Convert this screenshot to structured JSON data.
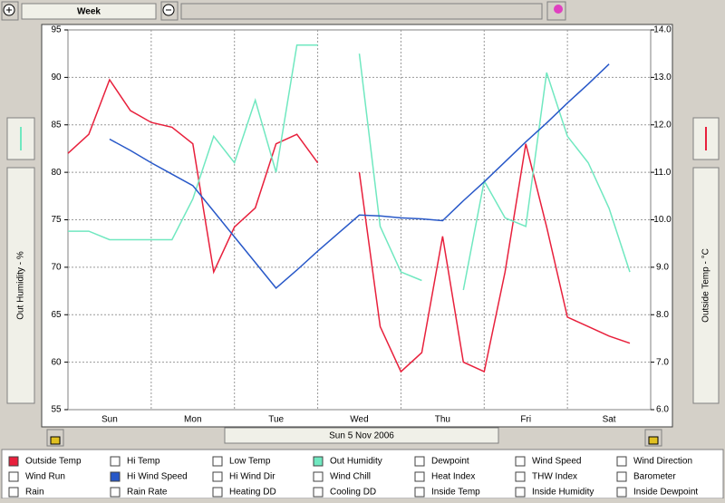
{
  "toolbar": {
    "period": "Week"
  },
  "footer": {
    "date": "Sun 5 Nov 2006"
  },
  "legend": {
    "items": [
      null,
      "Hi Temp",
      "Low Temp",
      null,
      "Dewpoint",
      "Wind Speed",
      "Wind Direction",
      "Wind Run",
      null,
      "Hi Wind Dir",
      "Wind Chill",
      "Heat Index",
      "THW Index",
      "Barometer",
      "Rain",
      "Rain Rate",
      "Heating DD",
      "Cooling DD",
      "Inside Temp",
      "Inside Humidity",
      "Inside Dewpoint"
    ]
  },
  "chart_data": {
    "type": "line",
    "y_label": "Out Humidity - %",
    "y2_label": "Outside Temp - °C",
    "categories": [
      null,
      null,
      "Sun",
      null,
      null,
      null,
      "Mon",
      null,
      null,
      null,
      "Tue",
      null,
      null,
      null,
      "Wed",
      null,
      null,
      null,
      "Thu",
      null,
      null,
      null,
      "Fri",
      null,
      null,
      null,
      "Sat",
      null
    ],
    "ylim": [
      55,
      95
    ],
    "yticks": [
      55,
      60,
      65,
      70,
      75,
      80,
      85,
      90,
      95
    ],
    "y2lim": [
      6,
      14
    ],
    "y2ticks": [
      {
        "value": 6,
        "label": "6.0"
      },
      {
        "value": 7,
        "label": "7.0"
      },
      {
        "value": 8,
        "label": "8.0"
      },
      {
        "value": 9,
        "label": "9.0"
      },
      {
        "value": 10,
        "label": "10.0"
      },
      {
        "value": 11,
        "label": "11.0"
      },
      {
        "value": 12,
        "label": "12.0"
      },
      {
        "value": 13,
        "label": "13.0"
      },
      {
        "value": 14,
        "label": "14.0"
      }
    ],
    "grid": true,
    "series": [
      {
        "name": "Outside Temp",
        "color": "#e8203c",
        "axis": "y2",
        "values": [
          11.4,
          11.8,
          12.95,
          12.3,
          12.05,
          11.95,
          11.6,
          8.9,
          9.85,
          10.25,
          11.6,
          11.8,
          11.2,
          null,
          11.0,
          7.75,
          6.8,
          7.2,
          9.65,
          7.0,
          6.8,
          8.9,
          11.6,
          9.85,
          7.95,
          7.75,
          7.55,
          7.4
        ]
      },
      {
        "name": "Out Humidity",
        "color": "#70e8c0",
        "values": [
          73.8,
          73.8,
          72.9,
          72.9,
          72.9,
          72.9,
          77.2,
          83.8,
          81.0,
          87.6,
          80.0,
          93.4,
          93.4,
          null,
          92.5,
          74.3,
          69.5,
          68.6,
          null,
          67.6,
          79.1,
          75.2,
          74.3,
          90.5,
          83.8,
          81.0,
          76.2,
          69.5
        ]
      },
      {
        "name": "Hi Wind Speed",
        "color": "#2858c8",
        "values": [
          null,
          null,
          83.5,
          82.3,
          81.0,
          79.8,
          78.6,
          75.9,
          73.2,
          70.5,
          67.8,
          69.7,
          71.7,
          73.6,
          75.5,
          75.4,
          75.2,
          75.1,
          74.9,
          77.0,
          79.0,
          81.1,
          83.2,
          85.2,
          87.3,
          89.3,
          91.4,
          null
        ]
      }
    ]
  }
}
